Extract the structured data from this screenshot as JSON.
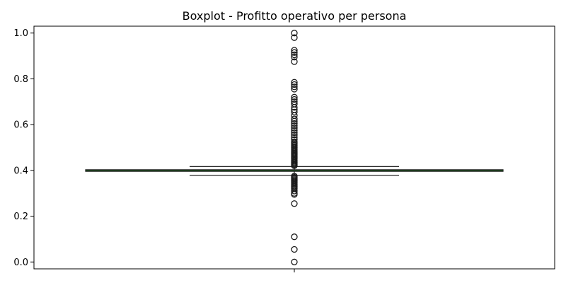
{
  "chart_data": {
    "type": "boxplot",
    "title": "Boxplot - Profitto operativo per persona",
    "xlabel": "",
    "ylabel": "",
    "ylim": [
      -0.03,
      1.03
    ],
    "yticks": [
      0.0,
      0.2,
      0.4,
      0.6,
      0.8,
      1.0
    ],
    "ytick_labels": [
      "0.0",
      "0.2",
      "0.4",
      "0.6",
      "0.8",
      "1.0"
    ],
    "grid": false,
    "box": {
      "q1": 0.396,
      "median": 0.399,
      "q3": 0.403,
      "whisker_low": 0.378,
      "whisker_high": 0.417,
      "color": "#3f4a3a"
    },
    "outliers": [
      1.0,
      0.98,
      0.925,
      0.915,
      0.905,
      0.895,
      0.875,
      0.785,
      0.775,
      0.765,
      0.755,
      0.72,
      0.71,
      0.7,
      0.69,
      0.675,
      0.665,
      0.655,
      0.64,
      0.625,
      0.615,
      0.605,
      0.595,
      0.585,
      0.575,
      0.565,
      0.555,
      0.545,
      0.535,
      0.525,
      0.52,
      0.515,
      0.51,
      0.505,
      0.5,
      0.495,
      0.49,
      0.485,
      0.48,
      0.475,
      0.47,
      0.465,
      0.46,
      0.455,
      0.45,
      0.445,
      0.44,
      0.435,
      0.43,
      0.425,
      0.42,
      0.375,
      0.37,
      0.365,
      0.36,
      0.355,
      0.35,
      0.345,
      0.34,
      0.335,
      0.33,
      0.325,
      0.32,
      0.31,
      0.3,
      0.295,
      0.255,
      0.11,
      0.055,
      0.0
    ]
  }
}
